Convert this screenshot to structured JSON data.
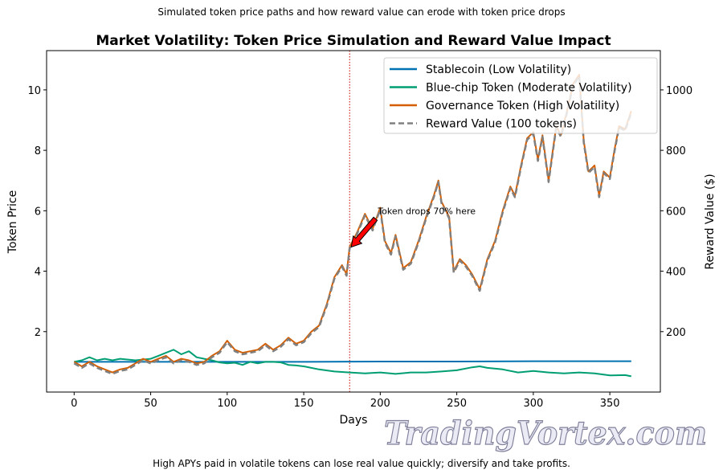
{
  "figure": {
    "suptitle": "Simulated token price paths and how reward value can erode with token price drops",
    "footer": "High APYs paid in volatile tokens can lose real value quickly; diversify and take profits.",
    "watermark": "TradingVortex.com"
  },
  "chart_data": {
    "type": "line",
    "title": "Market Volatility: Token Price Simulation and Reward Value Impact",
    "xlabel": "Days",
    "ylabel": "Token Price",
    "y2label": "Reward Value ($)",
    "xlim": [
      -18,
      383
    ],
    "ylim": [
      0,
      11.3
    ],
    "y2lim": [
      0,
      1130
    ],
    "xticks": [
      "0",
      "50",
      "100",
      "150",
      "200",
      "250",
      "300",
      "350"
    ],
    "yticks": [
      "2",
      "4",
      "6",
      "8",
      "10"
    ],
    "y2ticks": [
      "200",
      "400",
      "600",
      "800",
      "1000"
    ],
    "grid": false,
    "legend_position": "top-right",
    "vline": {
      "x": 180,
      "color": "#cc0000",
      "style": "dotted"
    },
    "annotation": {
      "text": "Token drops 70% here",
      "text_x": 200,
      "text_y": 6.0,
      "arrow_x": 180,
      "arrow_y": 4.8,
      "arrow_color": "#ff0000"
    },
    "series": [
      {
        "name": "Stablecoin (Low Volatility)",
        "axis": "left",
        "color": "#0072b2",
        "style": "solid",
        "x": [
          0,
          50,
          100,
          150,
          200,
          250,
          300,
          364
        ],
        "y": [
          1.0,
          1.0,
          1.0,
          1.0,
          1.01,
          1.01,
          1.02,
          1.02
        ]
      },
      {
        "name": "Blue-chip Token (Moderate Volatility)",
        "axis": "left",
        "color": "#009e73",
        "style": "solid",
        "x": [
          0,
          5,
          10,
          15,
          20,
          25,
          30,
          40,
          50,
          55,
          60,
          65,
          70,
          75,
          80,
          85,
          90,
          95,
          100,
          105,
          110,
          115,
          120,
          125,
          130,
          135,
          140,
          145,
          150,
          160,
          170,
          180,
          190,
          200,
          210,
          220,
          230,
          240,
          250,
          260,
          265,
          270,
          280,
          290,
          300,
          310,
          320,
          330,
          340,
          350,
          360,
          364
        ],
        "y": [
          1.0,
          1.05,
          1.15,
          1.05,
          1.1,
          1.05,
          1.1,
          1.05,
          1.1,
          1.2,
          1.3,
          1.4,
          1.25,
          1.35,
          1.15,
          1.1,
          1.05,
          0.98,
          0.95,
          0.97,
          0.9,
          1.0,
          0.95,
          1.0,
          1.0,
          0.98,
          0.9,
          0.88,
          0.85,
          0.75,
          0.68,
          0.65,
          0.62,
          0.65,
          0.6,
          0.65,
          0.65,
          0.68,
          0.72,
          0.82,
          0.85,
          0.8,
          0.75,
          0.65,
          0.7,
          0.65,
          0.62,
          0.65,
          0.62,
          0.55,
          0.56,
          0.52
        ]
      },
      {
        "name": "Governance Token (High Volatility)",
        "axis": "left",
        "color": "#d55e00",
        "style": "solid",
        "x": [
          0,
          5,
          10,
          15,
          20,
          25,
          30,
          35,
          40,
          45,
          50,
          55,
          60,
          65,
          70,
          75,
          80,
          85,
          90,
          95,
          100,
          105,
          110,
          115,
          120,
          125,
          130,
          135,
          140,
          145,
          150,
          155,
          160,
          165,
          170,
          175,
          178,
          180,
          185,
          190,
          195,
          200,
          203,
          207,
          210,
          215,
          220,
          225,
          230,
          235,
          238,
          240,
          245,
          248,
          252,
          256,
          260,
          263,
          265,
          270,
          275,
          280,
          285,
          288,
          292,
          296,
          300,
          303,
          306,
          310,
          315,
          318,
          322,
          326,
          330,
          333,
          336,
          340,
          343,
          346,
          350,
          353,
          356,
          360,
          364
        ],
        "y": [
          1.0,
          0.85,
          1.0,
          0.85,
          0.75,
          0.65,
          0.75,
          0.8,
          0.95,
          1.1,
          1.0,
          1.1,
          1.2,
          1.0,
          1.1,
          1.05,
          0.95,
          1.0,
          1.2,
          1.35,
          1.7,
          1.4,
          1.3,
          1.35,
          1.4,
          1.6,
          1.4,
          1.55,
          1.8,
          1.6,
          1.7,
          2.0,
          2.2,
          2.9,
          3.8,
          4.2,
          3.9,
          4.8,
          5.3,
          5.9,
          5.4,
          6.1,
          5.0,
          4.6,
          5.2,
          4.1,
          4.3,
          5.0,
          5.8,
          6.5,
          7.0,
          6.3,
          5.8,
          4.0,
          4.4,
          4.2,
          3.9,
          3.6,
          3.4,
          4.4,
          5.0,
          6.0,
          6.8,
          6.5,
          7.5,
          8.4,
          8.6,
          7.7,
          8.5,
          7.0,
          8.8,
          8.5,
          9.3,
          10.2,
          10.5,
          8.3,
          7.3,
          7.5,
          6.5,
          7.3,
          7.1,
          8.0,
          8.8,
          8.7,
          9.3
        ]
      },
      {
        "name": "Reward Value (100 tokens)",
        "axis": "right",
        "color": "#808080",
        "style": "dashed",
        "x": [
          0,
          5,
          10,
          15,
          20,
          25,
          30,
          35,
          40,
          45,
          50,
          55,
          60,
          65,
          70,
          75,
          80,
          85,
          90,
          95,
          100,
          105,
          110,
          115,
          120,
          125,
          130,
          135,
          140,
          145,
          150,
          155,
          160,
          165,
          170,
          175,
          178,
          180,
          185,
          190,
          195,
          200,
          203,
          207,
          210,
          215,
          220,
          225,
          230,
          235,
          238,
          240,
          245,
          248,
          252,
          256,
          260,
          263,
          265,
          270,
          275,
          280,
          285,
          288,
          292,
          296,
          300,
          303,
          306,
          310,
          315,
          318,
          322,
          326,
          330,
          333,
          336,
          340,
          343,
          346,
          350,
          353,
          356,
          360,
          364
        ],
        "y": [
          95,
          80,
          95,
          80,
          70,
          60,
          70,
          75,
          90,
          105,
          95,
          105,
          115,
          95,
          105,
          100,
          90,
          95,
          115,
          130,
          165,
          135,
          125,
          130,
          135,
          155,
          135,
          150,
          175,
          155,
          165,
          195,
          215,
          285,
          375,
          415,
          385,
          475,
          525,
          585,
          535,
          605,
          495,
          455,
          515,
          405,
          425,
          495,
          575,
          645,
          695,
          625,
          575,
          395,
          435,
          415,
          385,
          355,
          335,
          435,
          495,
          595,
          675,
          645,
          745,
          835,
          855,
          765,
          845,
          695,
          875,
          845,
          925,
          1015,
          1045,
          825,
          725,
          745,
          645,
          725,
          705,
          795,
          875,
          865,
          925
        ]
      }
    ]
  }
}
